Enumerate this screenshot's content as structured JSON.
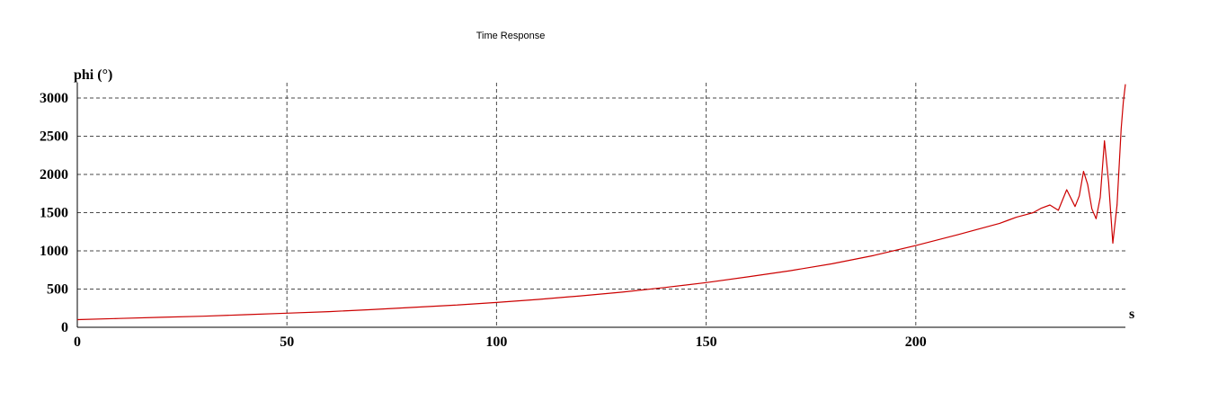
{
  "chart_data": {
    "type": "line",
    "title": "Time Response",
    "ylabel": "phi (°)",
    "xlabel": "s",
    "xlim": [
      0,
      250
    ],
    "ylim": [
      0,
      3200
    ],
    "x_ticks": [
      0,
      50,
      100,
      150,
      200
    ],
    "y_ticks": [
      0,
      500,
      1000,
      1500,
      2000,
      2500,
      3000
    ],
    "grid": true,
    "series": [
      {
        "color": "#cc0000",
        "x": [
          0,
          10,
          20,
          30,
          40,
          50,
          60,
          70,
          80,
          90,
          100,
          110,
          120,
          130,
          140,
          150,
          160,
          170,
          180,
          190,
          200,
          210,
          218,
          220,
          222,
          224,
          226,
          228,
          230,
          232,
          234,
          236,
          238,
          239,
          240,
          241,
          242,
          243,
          244,
          245,
          246,
          247,
          248,
          249,
          249.5,
          250
        ],
        "y": [
          100,
          115,
          130,
          145,
          165,
          185,
          205,
          230,
          260,
          290,
          325,
          365,
          410,
          460,
          520,
          585,
          660,
          740,
          830,
          940,
          1070,
          1210,
          1330,
          1360,
          1400,
          1440,
          1470,
          1500,
          1560,
          1600,
          1530,
          1800,
          1580,
          1720,
          2040,
          1870,
          1550,
          1420,
          1700,
          2440,
          1900,
          1100,
          1600,
          2600,
          2950,
          3180
        ]
      }
    ]
  }
}
